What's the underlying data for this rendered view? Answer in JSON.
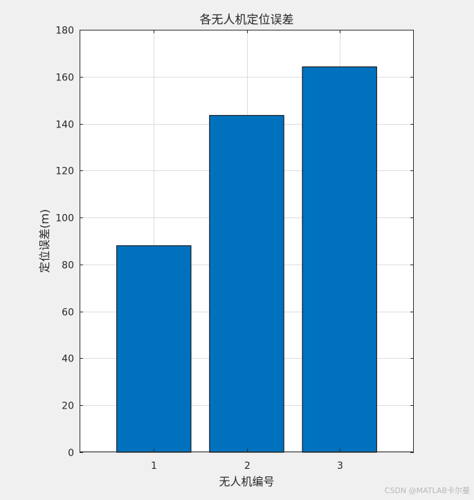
{
  "chart_data": {
    "type": "bar",
    "title": "各无人机定位误差",
    "xlabel": "无人机编号",
    "ylabel": "定位误差(m)",
    "categories": [
      "1",
      "2",
      "3"
    ],
    "values": [
      88,
      143.5,
      164.2
    ],
    "xlim": [
      0.2,
      3.8
    ],
    "ylim": [
      0,
      180
    ],
    "yticks": [
      0,
      20,
      40,
      60,
      80,
      100,
      120,
      140,
      160,
      180
    ],
    "grid": true,
    "colors": {
      "bar": "#0072BD",
      "axes_bg": "#ffffff",
      "figure_bg": "#f0f0f0"
    }
  },
  "watermark": "CSDN @MATLAB卡尔曼"
}
